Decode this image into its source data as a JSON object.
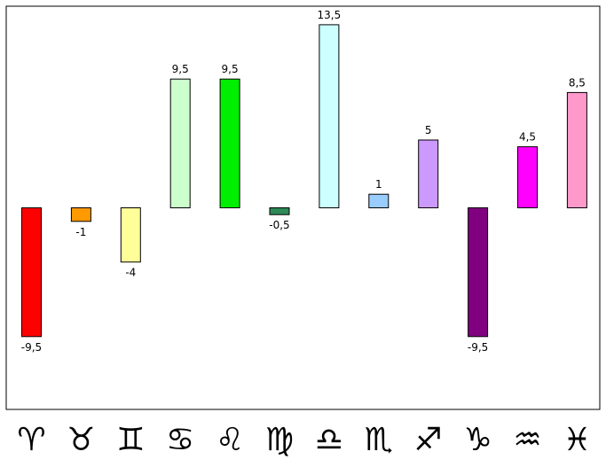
{
  "chart_data": {
    "type": "bar",
    "categories": [
      "♈",
      "♉",
      "♊",
      "♋",
      "♌",
      "♍",
      "♎",
      "♏",
      "♐",
      "♑",
      "♒",
      "♓"
    ],
    "category_icons": [
      "aries-icon",
      "taurus-icon",
      "gemini-icon",
      "cancer-icon",
      "leo-icon",
      "virgo-icon",
      "libra-icon",
      "scorpio-icon",
      "sagittarius-icon",
      "capricorn-icon",
      "aquarius-icon",
      "pisces-icon"
    ],
    "values": [
      -9.5,
      -1,
      -4,
      9.5,
      9.5,
      -0.5,
      13.5,
      1,
      5,
      -9.5,
      4.5,
      8.5
    ],
    "value_labels": [
      "-9,5",
      "-1",
      "-4",
      "9,5",
      "9,5",
      "-0,5",
      "13,5",
      "1",
      "5",
      "-9,5",
      "4,5",
      "8,5"
    ],
    "colors": [
      "#ff0000",
      "#ff9900",
      "#ffff99",
      "#ccffcc",
      "#00ee00",
      "#2e8b57",
      "#ccffff",
      "#99ccff",
      "#cc99ff",
      "#800080",
      "#ff00ff",
      "#ff99cc"
    ],
    "ylim": [
      -15,
      15
    ],
    "grid": false,
    "legend": "none"
  }
}
